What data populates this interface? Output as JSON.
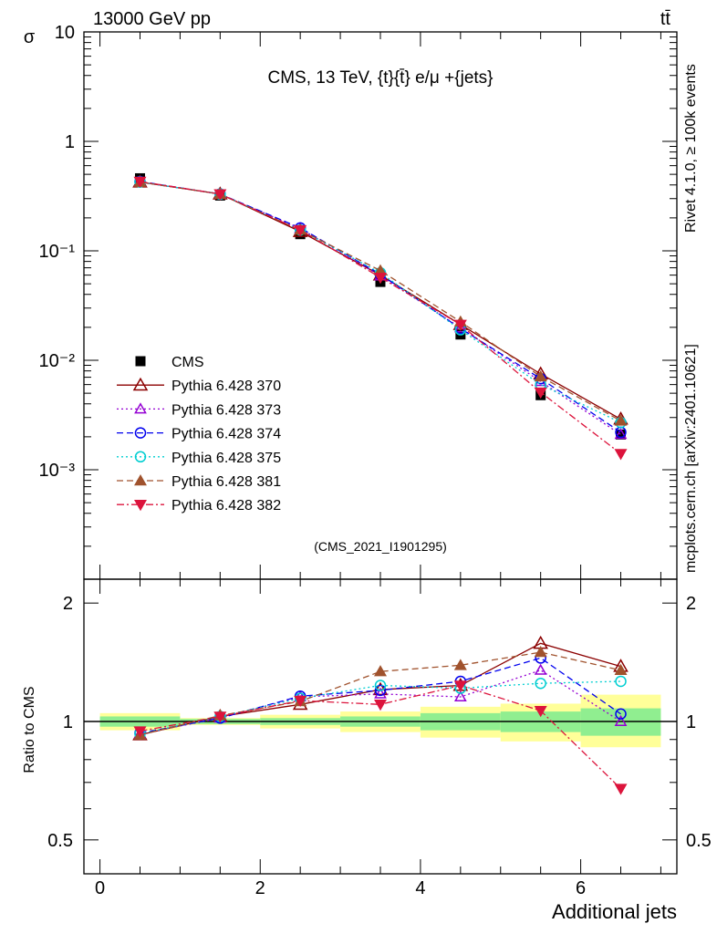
{
  "header": {
    "energy_label": "13000 GeV pp",
    "process_label": "tt̄",
    "rivet_label": "Rivet 4.1.0, ≥ 100k events",
    "source_label": "mcplots.cern.ch [arXiv:2401.10621]",
    "analysis_id": "(CMS_2021_I1901295)"
  },
  "colors": {
    "data": "#000000",
    "p370": "#8b0000",
    "p373": "#9400d3",
    "p374": "#0000ee",
    "p375": "#00ced1",
    "p381": "#a0522d",
    "p382": "#dc143c",
    "band_inner": "#90ee90",
    "band_outer": "#ffff99"
  },
  "chart_data": [
    {
      "type": "scatter",
      "title": "CMS, 13 TeV, {t}{t̄} e/μ +{jets}",
      "ylabel": "σ",
      "yscale": "log",
      "ylim": [
        0.0001,
        10
      ],
      "xlim": [
        -0.2,
        7.2
      ],
      "yticks": [
        {
          "value": 10,
          "label": "10"
        },
        {
          "value": 1,
          "label": "1"
        },
        {
          "value": 0.1,
          "label": "10⁻¹"
        },
        {
          "value": 0.01,
          "label": "10⁻²"
        },
        {
          "value": 0.001,
          "label": "10⁻³"
        }
      ],
      "x": [
        0.5,
        1.5,
        2.5,
        3.5,
        4.5,
        5.5,
        6.5
      ],
      "series": [
        {
          "key": "data",
          "name": "CMS",
          "marker": "square",
          "line": "none",
          "values": [
            0.46,
            0.32,
            0.142,
            0.052,
            0.0172,
            0.0048,
            0.0021
          ]
        },
        {
          "key": "p370",
          "name": "Pythia 6.428 370",
          "marker": "triangle-up-open",
          "line": "solid",
          "values": [
            0.425,
            0.33,
            0.15,
            0.06,
            0.0212,
            0.0075,
            0.0029
          ]
        },
        {
          "key": "p373",
          "name": "Pythia 6.428 373",
          "marker": "triangle-up-open",
          "line": "dotted",
          "values": [
            0.425,
            0.33,
            0.16,
            0.059,
            0.0198,
            0.0064,
            0.0021
          ]
        },
        {
          "key": "p374",
          "name": "Pythia 6.428 374",
          "marker": "circle-open",
          "line": "dashed",
          "values": [
            0.43,
            0.33,
            0.162,
            0.061,
            0.0195,
            0.0068,
            0.0022
          ]
        },
        {
          "key": "p375",
          "name": "Pythia 6.428 375",
          "marker": "circle-open",
          "line": "dotted",
          "values": [
            0.425,
            0.33,
            0.155,
            0.063,
            0.019,
            0.006,
            0.0027
          ]
        },
        {
          "key": "p381",
          "name": "Pythia 6.428 381",
          "marker": "triangle-up-filled",
          "line": "dashed",
          "values": [
            0.425,
            0.33,
            0.155,
            0.066,
            0.0225,
            0.0071,
            0.0028
          ]
        },
        {
          "key": "p382",
          "name": "Pythia 6.428 382",
          "marker": "triangle-down-filled",
          "line": "dashdot",
          "values": [
            0.43,
            0.33,
            0.155,
            0.057,
            0.0212,
            0.0051,
            0.0014
          ]
        }
      ]
    },
    {
      "type": "scatter",
      "ylabel": "Ratio to CMS",
      "xlabel": "Additional jets",
      "yscale": "log",
      "ylim": [
        0.41,
        2.3
      ],
      "xlim": [
        -0.2,
        7.2
      ],
      "xticks": [
        0,
        2,
        4,
        6
      ],
      "yticks": [
        {
          "value": 0.5,
          "label": "0.5"
        },
        {
          "value": 1,
          "label": "1"
        },
        {
          "value": 2,
          "label": "2"
        }
      ],
      "x": [
        0.5,
        1.5,
        2.5,
        3.5,
        4.5,
        5.5,
        6.5
      ],
      "bands": {
        "edges": [
          0,
          1,
          2,
          3,
          4,
          5,
          6,
          7
        ],
        "inner": [
          [
            0.97,
            1.03
          ],
          [
            0.985,
            1.015
          ],
          [
            0.98,
            1.02
          ],
          [
            0.97,
            1.03
          ],
          [
            0.95,
            1.05
          ],
          [
            0.94,
            1.06
          ],
          [
            0.92,
            1.08
          ]
        ],
        "outer": [
          [
            0.95,
            1.05
          ],
          [
            0.98,
            1.02
          ],
          [
            0.96,
            1.04
          ],
          [
            0.94,
            1.06
          ],
          [
            0.91,
            1.09
          ],
          [
            0.89,
            1.11
          ],
          [
            0.86,
            1.17
          ]
        ]
      },
      "series": [
        {
          "key": "p370",
          "name": "Pythia 6.428 370",
          "values": [
            0.925,
            1.03,
            1.105,
            1.205,
            1.235,
            1.58,
            1.38
          ]
        },
        {
          "key": "p373",
          "name": "Pythia 6.428 373",
          "values": [
            0.93,
            1.02,
            1.155,
            1.175,
            1.155,
            1.35,
            1.0
          ]
        },
        {
          "key": "p374",
          "name": "Pythia 6.428 374",
          "values": [
            0.935,
            1.02,
            1.16,
            1.2,
            1.265,
            1.45,
            1.045
          ]
        },
        {
          "key": "p375",
          "name": "Pythia 6.428 375",
          "values": [
            0.93,
            1.03,
            1.145,
            1.235,
            1.215,
            1.25,
            1.265
          ]
        },
        {
          "key": "p381",
          "name": "Pythia 6.428 381",
          "values": [
            0.925,
            1.035,
            1.125,
            1.34,
            1.39,
            1.5,
            1.35
          ]
        },
        {
          "key": "p382",
          "name": "Pythia 6.428 382",
          "values": [
            0.945,
            1.03,
            1.13,
            1.105,
            1.235,
            1.065,
            0.675
          ]
        }
      ]
    }
  ]
}
